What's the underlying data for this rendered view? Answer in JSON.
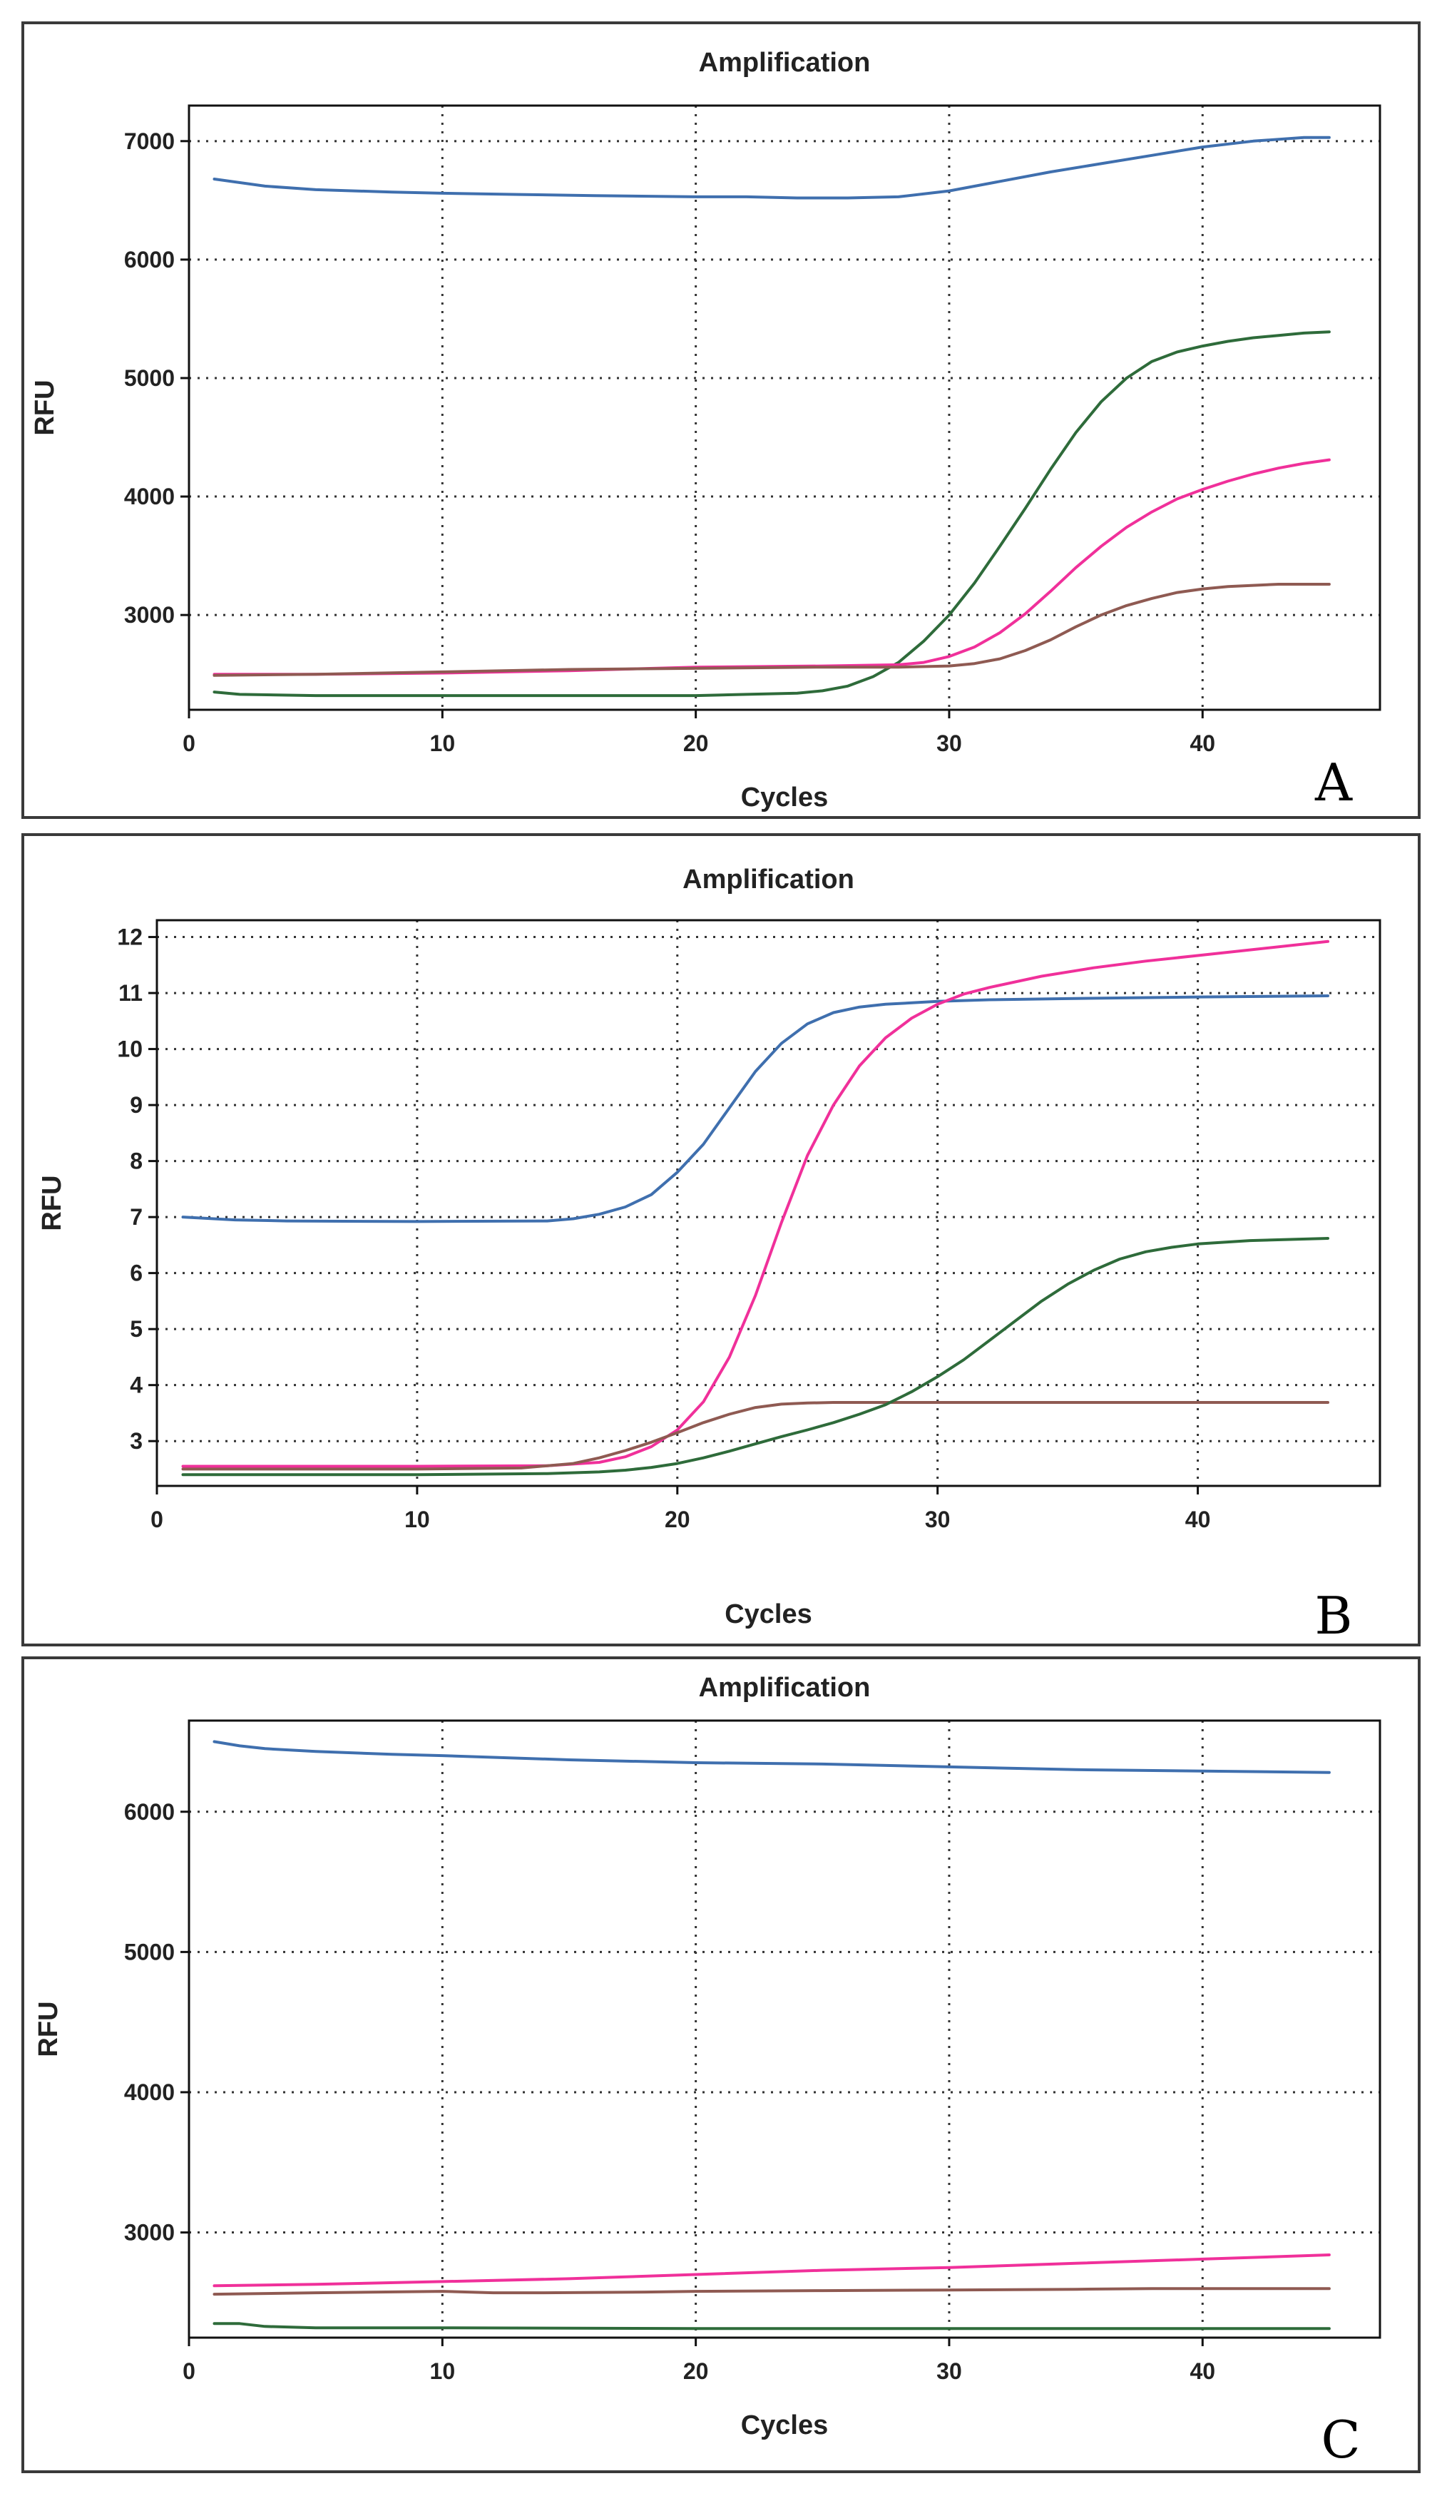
{
  "series_colors": {
    "blue": "#3f6fae",
    "green": "#2e6b3a",
    "magenta": "#f0309a",
    "brown": "#8f5a52"
  },
  "chart_data": [
    {
      "panel": "A",
      "type": "line",
      "title": "Amplification",
      "xlabel": "Cycles",
      "ylabel": "RFU",
      "xlim": [
        0,
        47
      ],
      "ylim": [
        2200,
        7300
      ],
      "xticks": [
        0,
        10,
        20,
        30,
        40
      ],
      "yticks": [
        3000,
        4000,
        5000,
        6000,
        7000
      ],
      "grid": true,
      "series": [
        {
          "color": "blue",
          "x": [
            1,
            3,
            5,
            8,
            10,
            13,
            16,
            20,
            22,
            24,
            26,
            28,
            30,
            32,
            34,
            36,
            38,
            40,
            42,
            44,
            45
          ],
          "y": [
            6680,
            6620,
            6590,
            6570,
            6560,
            6550,
            6540,
            6530,
            6530,
            6520,
            6520,
            6530,
            6580,
            6660,
            6740,
            6810,
            6880,
            6950,
            7000,
            7030,
            7030
          ]
        },
        {
          "color": "green",
          "x": [
            1,
            2,
            5,
            10,
            15,
            20,
            22,
            24,
            25,
            26,
            27,
            28,
            29,
            30,
            31,
            32,
            33,
            34,
            35,
            36,
            37,
            38,
            39,
            40,
            41,
            42,
            43,
            44,
            45
          ],
          "y": [
            2350,
            2330,
            2320,
            2320,
            2320,
            2320,
            2330,
            2340,
            2360,
            2400,
            2480,
            2600,
            2780,
            3000,
            3270,
            3580,
            3900,
            4230,
            4540,
            4800,
            5000,
            5140,
            5220,
            5270,
            5310,
            5340,
            5360,
            5380,
            5390
          ]
        },
        {
          "color": "magenta",
          "x": [
            1,
            5,
            10,
            15,
            20,
            25,
            28,
            29,
            30,
            31,
            32,
            33,
            34,
            35,
            36,
            37,
            38,
            39,
            40,
            41,
            42,
            43,
            44,
            45
          ],
          "y": [
            2500,
            2500,
            2510,
            2530,
            2560,
            2570,
            2580,
            2600,
            2650,
            2730,
            2850,
            3010,
            3200,
            3400,
            3580,
            3740,
            3870,
            3980,
            4060,
            4130,
            4190,
            4240,
            4280,
            4310
          ]
        },
        {
          "color": "brown",
          "x": [
            1,
            5,
            10,
            15,
            20,
            25,
            28,
            30,
            31,
            32,
            33,
            34,
            35,
            36,
            37,
            38,
            39,
            40,
            41,
            42,
            43,
            44,
            45
          ],
          "y": [
            2490,
            2500,
            2520,
            2540,
            2550,
            2560,
            2560,
            2570,
            2590,
            2630,
            2700,
            2790,
            2900,
            3000,
            3080,
            3140,
            3190,
            3220,
            3240,
            3250,
            3260,
            3260,
            3260
          ]
        }
      ]
    },
    {
      "panel": "B",
      "type": "line",
      "title": "Amplification",
      "xlabel": "Cycles",
      "ylabel": "RFU",
      "xlim": [
        0,
        47
      ],
      "ylim": [
        2.2,
        12.3
      ],
      "xticks": [
        0,
        10,
        20,
        30,
        40
      ],
      "yticks": [
        3,
        4,
        5,
        6,
        7,
        8,
        9,
        10,
        11,
        12
      ],
      "grid": true,
      "series": [
        {
          "color": "blue",
          "x": [
            1,
            3,
            5,
            10,
            15,
            16,
            17,
            18,
            19,
            20,
            21,
            22,
            23,
            24,
            25,
            26,
            27,
            28,
            30,
            32,
            35,
            40,
            45
          ],
          "y": [
            7.0,
            6.95,
            6.93,
            6.92,
            6.93,
            6.97,
            7.05,
            7.18,
            7.4,
            7.8,
            8.3,
            8.95,
            9.6,
            10.1,
            10.45,
            10.65,
            10.75,
            10.8,
            10.85,
            10.88,
            10.9,
            10.93,
            10.95
          ]
        },
        {
          "color": "magenta",
          "x": [
            1,
            5,
            10,
            15,
            17,
            18,
            19,
            20,
            21,
            22,
            23,
            24,
            25,
            26,
            27,
            28,
            29,
            30,
            31,
            32,
            34,
            36,
            38,
            40,
            42,
            45
          ],
          "y": [
            2.55,
            2.55,
            2.55,
            2.56,
            2.62,
            2.72,
            2.9,
            3.2,
            3.7,
            4.5,
            5.6,
            6.9,
            8.1,
            9.0,
            9.7,
            10.2,
            10.55,
            10.8,
            10.98,
            11.1,
            11.3,
            11.45,
            11.57,
            11.67,
            11.77,
            11.92
          ]
        },
        {
          "color": "brown",
          "x": [
            1,
            5,
            10,
            14,
            16,
            17,
            18,
            19,
            20,
            21,
            22,
            23,
            24,
            25,
            26,
            28,
            30,
            35,
            40,
            45
          ],
          "y": [
            2.5,
            2.5,
            2.5,
            2.52,
            2.6,
            2.7,
            2.83,
            2.98,
            3.15,
            3.33,
            3.48,
            3.6,
            3.66,
            3.68,
            3.69,
            3.69,
            3.69,
            3.69,
            3.69,
            3.69
          ]
        },
        {
          "color": "green",
          "x": [
            1,
            5,
            10,
            15,
            17,
            18,
            19,
            20,
            21,
            22,
            23,
            24,
            25,
            26,
            27,
            28,
            29,
            30,
            31,
            32,
            33,
            34,
            35,
            36,
            37,
            38,
            39,
            40,
            42,
            45
          ],
          "y": [
            2.4,
            2.4,
            2.4,
            2.42,
            2.45,
            2.48,
            2.53,
            2.6,
            2.7,
            2.82,
            2.95,
            3.08,
            3.2,
            3.33,
            3.48,
            3.65,
            3.88,
            4.15,
            4.45,
            4.8,
            5.15,
            5.5,
            5.8,
            6.05,
            6.25,
            6.38,
            6.46,
            6.52,
            6.58,
            6.62
          ]
        }
      ]
    },
    {
      "panel": "C",
      "type": "line",
      "title": "Amplification",
      "xlabel": "Cycles",
      "ylabel": "RFU",
      "xlim": [
        0,
        47
      ],
      "ylim": [
        2250,
        6650
      ],
      "xticks": [
        0,
        10,
        20,
        30,
        40
      ],
      "yticks": [
        3000,
        4000,
        5000,
        6000
      ],
      "grid": true,
      "series": [
        {
          "color": "blue",
          "x": [
            1,
            2,
            3,
            5,
            8,
            10,
            15,
            20,
            25,
            30,
            35,
            40,
            45
          ],
          "y": [
            6500,
            6470,
            6450,
            6430,
            6410,
            6400,
            6370,
            6350,
            6340,
            6320,
            6300,
            6290,
            6280
          ]
        },
        {
          "color": "magenta",
          "x": [
            1,
            5,
            10,
            15,
            20,
            25,
            30,
            35,
            40,
            45
          ],
          "y": [
            2620,
            2630,
            2650,
            2670,
            2700,
            2730,
            2750,
            2780,
            2810,
            2840
          ]
        },
        {
          "color": "brown",
          "x": [
            1,
            5,
            10,
            12,
            14,
            18,
            20,
            25,
            30,
            35,
            38,
            40,
            45
          ],
          "y": [
            2560,
            2570,
            2580,
            2570,
            2570,
            2575,
            2580,
            2585,
            2590,
            2595,
            2600,
            2600,
            2600
          ]
        },
        {
          "color": "green",
          "x": [
            1,
            2,
            3,
            5,
            10,
            20,
            30,
            40,
            45
          ],
          "y": [
            2350,
            2350,
            2330,
            2320,
            2320,
            2315,
            2315,
            2315,
            2315
          ]
        }
      ]
    }
  ],
  "panel_letters": [
    "A",
    "B",
    "C"
  ]
}
